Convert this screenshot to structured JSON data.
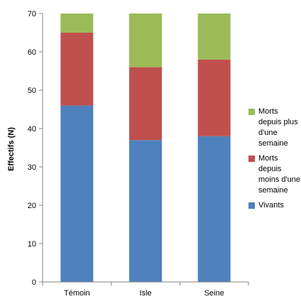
{
  "chart_data": {
    "type": "bar",
    "stacked": true,
    "categories": [
      "Témoin",
      "Isle",
      "Seine"
    ],
    "series": [
      {
        "name": "Vivants",
        "values": [
          46,
          37,
          38
        ],
        "color": "#4f81bd"
      },
      {
        "name": "Morts depuis moins d'une semaine",
        "values": [
          19,
          19,
          20
        ],
        "color": "#c0504d"
      },
      {
        "name": "Morts depuis plus d'une semaine",
        "values": [
          5,
          14,
          12
        ],
        "color": "#9bbb59"
      }
    ],
    "xlabel": "",
    "ylabel": "Effectifs (N)",
    "ylim": [
      0,
      70
    ],
    "yticks": [
      0,
      10,
      20,
      30,
      40,
      50,
      60,
      70
    ],
    "grid": false,
    "legend_position": "right"
  }
}
